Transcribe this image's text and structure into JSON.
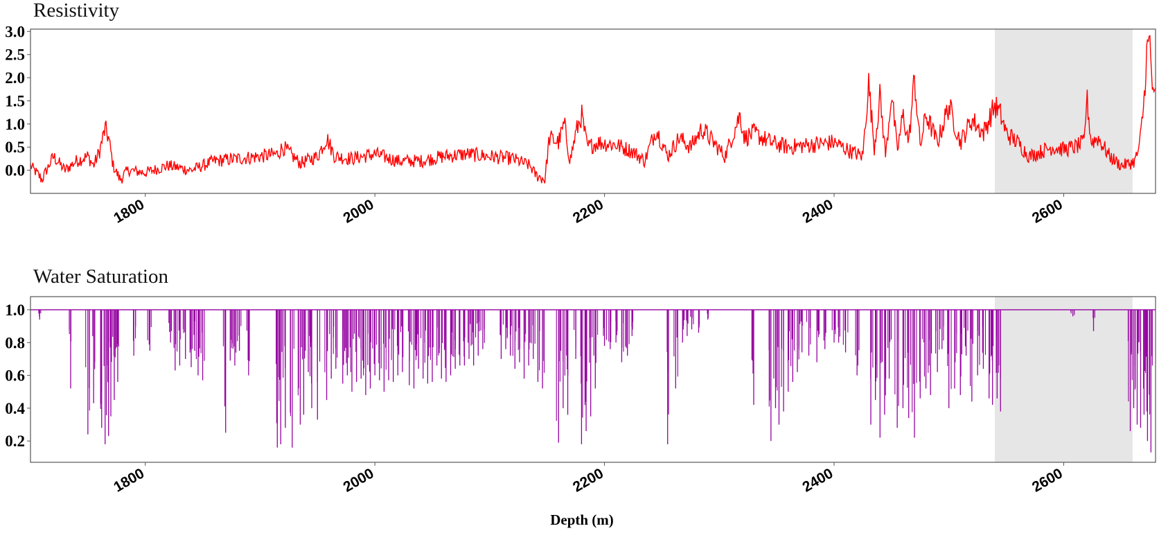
{
  "chart_data": [
    {
      "type": "line",
      "title": "Resistivity",
      "xlabel": "",
      "ylabel": "",
      "xlim": [
        1700,
        2680
      ],
      "ylim": [
        -0.5,
        3.05
      ],
      "xticks": [
        1800,
        2000,
        2200,
        2400,
        2600
      ],
      "xtick_labels": [
        "1800",
        "2000",
        "2200",
        "2400",
        "2600"
      ],
      "yticks": [
        0.0,
        0.5,
        1.0,
        1.5,
        2.0,
        2.5,
        3.0
      ],
      "ytick_labels": [
        "0.0",
        "0.5",
        "1.0",
        "1.5",
        "2.0",
        "2.5",
        "3.0"
      ],
      "highlight_range": [
        2540,
        2660
      ],
      "color": "#ff0000",
      "series": [
        {
          "name": "Resistivity",
          "x": [
            1700,
            1710,
            1720,
            1730,
            1740,
            1750,
            1755,
            1760,
            1765,
            1768,
            1772,
            1778,
            1785,
            1800,
            1820,
            1840,
            1860,
            1880,
            1900,
            1915,
            1920,
            1935,
            1950,
            1958,
            1965,
            1980,
            2000,
            2020,
            2040,
            2060,
            2080,
            2100,
            2120,
            2135,
            2140,
            2148,
            2152,
            2160,
            2165,
            2170,
            2175,
            2180,
            2185,
            2195,
            2210,
            2225,
            2235,
            2245,
            2255,
            2265,
            2275,
            2285,
            2295,
            2305,
            2318,
            2322,
            2330,
            2345,
            2360,
            2380,
            2400,
            2415,
            2425,
            2430,
            2435,
            2440,
            2445,
            2450,
            2455,
            2460,
            2465,
            2470,
            2475,
            2480,
            2490,
            2500,
            2510,
            2520,
            2530,
            2540,
            2545,
            2550,
            2560,
            2570,
            2580,
            2590,
            2600,
            2610,
            2618,
            2620,
            2624,
            2630,
            2640,
            2650,
            2658,
            2662,
            2666,
            2670,
            2672,
            2675,
            2678,
            2680
          ],
          "y": [
            0.1,
            -0.2,
            0.3,
            0.0,
            0.2,
            0.3,
            0.1,
            0.4,
            0.9,
            0.7,
            0.1,
            -0.2,
            0.0,
            -0.05,
            0.1,
            0.0,
            0.2,
            0.25,
            0.3,
            0.35,
            0.5,
            0.15,
            0.3,
            0.7,
            0.3,
            0.25,
            0.35,
            0.2,
            0.2,
            0.3,
            0.35,
            0.3,
            0.25,
            0.1,
            -0.1,
            -0.2,
            0.7,
            0.6,
            1.0,
            0.2,
            0.8,
            1.2,
            0.5,
            0.6,
            0.55,
            0.4,
            0.2,
            0.9,
            0.3,
            0.7,
            0.5,
            0.9,
            0.6,
            0.3,
            1.2,
            0.7,
            0.8,
            0.6,
            0.5,
            0.55,
            0.6,
            0.4,
            0.3,
            1.9,
            0.5,
            1.6,
            0.3,
            1.7,
            0.4,
            1.2,
            0.6,
            2.0,
            0.5,
            1.2,
            0.6,
            1.4,
            0.6,
            1.1,
            0.8,
            1.4,
            1.2,
            0.8,
            0.6,
            0.3,
            0.4,
            0.5,
            0.45,
            0.5,
            0.6,
            1.6,
            0.6,
            0.7,
            0.3,
            0.1,
            0.15,
            0.2,
            0.5,
            1.5,
            2.5,
            2.8,
            1.5,
            1.6
          ]
        }
      ]
    },
    {
      "type": "line",
      "title": "Water Saturation",
      "xlabel": "Depth (m)",
      "ylabel": "",
      "xlim": [
        1700,
        2680
      ],
      "ylim": [
        0.07,
        1.08
      ],
      "xticks": [
        1800,
        2000,
        2200,
        2400,
        2600
      ],
      "xtick_labels": [
        "1800",
        "2000",
        "2200",
        "2400",
        "2600"
      ],
      "yticks": [
        0.2,
        0.4,
        0.6,
        0.8,
        1.0
      ],
      "ytick_labels": [
        "0.2",
        "0.4",
        "0.6",
        "0.8",
        "1.0"
      ],
      "highlight_range": [
        2540,
        2660
      ],
      "color": "#9400a0",
      "baseline": 1.0,
      "series": [
        {
          "name": "Water Saturation",
          "dips_x": [
            1708,
            1735,
            1750,
            1755,
            1762,
            1765,
            1768,
            1770,
            1773,
            1776,
            1790,
            1804,
            1822,
            1826,
            1830,
            1835,
            1840,
            1843,
            1846,
            1850,
            1870,
            1874,
            1878,
            1882,
            1890,
            1915,
            1918,
            1922,
            1928,
            1935,
            1938,
            1942,
            1945,
            1950,
            1958,
            1962,
            1966,
            1972,
            1976,
            1980,
            1984,
            1988,
            1992,
            1996,
            2000,
            2004,
            2008,
            2012,
            2016,
            2020,
            2024,
            2030,
            2034,
            2038,
            2042,
            2046,
            2050,
            2054,
            2058,
            2062,
            2066,
            2070,
            2074,
            2078,
            2082,
            2086,
            2090,
            2094,
            2110,
            2114,
            2118,
            2122,
            2126,
            2130,
            2134,
            2138,
            2142,
            2146,
            2160,
            2164,
            2168,
            2175,
            2180,
            2184,
            2188,
            2192,
            2200,
            2205,
            2210,
            2215,
            2220,
            2224,
            2255,
            2262,
            2268,
            2272,
            2276,
            2282,
            2290,
            2330,
            2345,
            2349,
            2352,
            2356,
            2360,
            2364,
            2368,
            2372,
            2378,
            2385,
            2392,
            2400,
            2404,
            2410,
            2420,
            2432,
            2436,
            2440,
            2444,
            2448,
            2455,
            2460,
            2465,
            2470,
            2475,
            2480,
            2484,
            2490,
            2494,
            2500,
            2505,
            2510,
            2515,
            2520,
            2525,
            2530,
            2535,
            2538,
            2542,
            2545,
            2608,
            2626,
            2658,
            2661,
            2664,
            2667,
            2670,
            2673,
            2676
          ],
          "dips_y": [
            0.94,
            0.52,
            0.24,
            0.43,
            0.28,
            0.18,
            0.23,
            0.35,
            0.45,
            0.56,
            0.72,
            0.75,
            0.8,
            0.63,
            0.66,
            0.7,
            0.65,
            0.75,
            0.6,
            0.57,
            0.25,
            0.69,
            0.66,
            0.75,
            0.6,
            0.16,
            0.18,
            0.28,
            0.16,
            0.3,
            0.36,
            0.62,
            0.4,
            0.33,
            0.45,
            0.58,
            0.64,
            0.55,
            0.6,
            0.5,
            0.56,
            0.58,
            0.48,
            0.52,
            0.6,
            0.57,
            0.5,
            0.57,
            0.56,
            0.6,
            0.62,
            0.54,
            0.52,
            0.64,
            0.58,
            0.55,
            0.56,
            0.66,
            0.58,
            0.56,
            0.6,
            0.64,
            0.66,
            0.66,
            0.7,
            0.66,
            0.72,
            0.76,
            0.7,
            0.76,
            0.72,
            0.64,
            0.68,
            0.58,
            0.66,
            0.7,
            0.56,
            0.52,
            0.19,
            0.4,
            0.36,
            0.7,
            0.18,
            0.26,
            0.35,
            0.52,
            0.78,
            0.76,
            0.8,
            0.68,
            0.72,
            0.84,
            0.18,
            0.52,
            0.8,
            0.84,
            0.88,
            0.86,
            0.94,
            0.42,
            0.2,
            0.4,
            0.3,
            0.38,
            0.5,
            0.56,
            0.62,
            0.74,
            0.72,
            0.68,
            0.76,
            0.8,
            0.8,
            0.74,
            0.6,
            0.3,
            0.45,
            0.22,
            0.36,
            0.58,
            0.28,
            0.4,
            0.34,
            0.22,
            0.46,
            0.52,
            0.48,
            0.62,
            0.76,
            0.4,
            0.52,
            0.48,
            0.72,
            0.44,
            0.6,
            0.64,
            0.46,
            0.42,
            0.46,
            0.38,
            0.96,
            0.87,
            0.26,
            0.4,
            0.3,
            0.28,
            0.36,
            0.2,
            0.13
          ]
        }
      ]
    }
  ]
}
